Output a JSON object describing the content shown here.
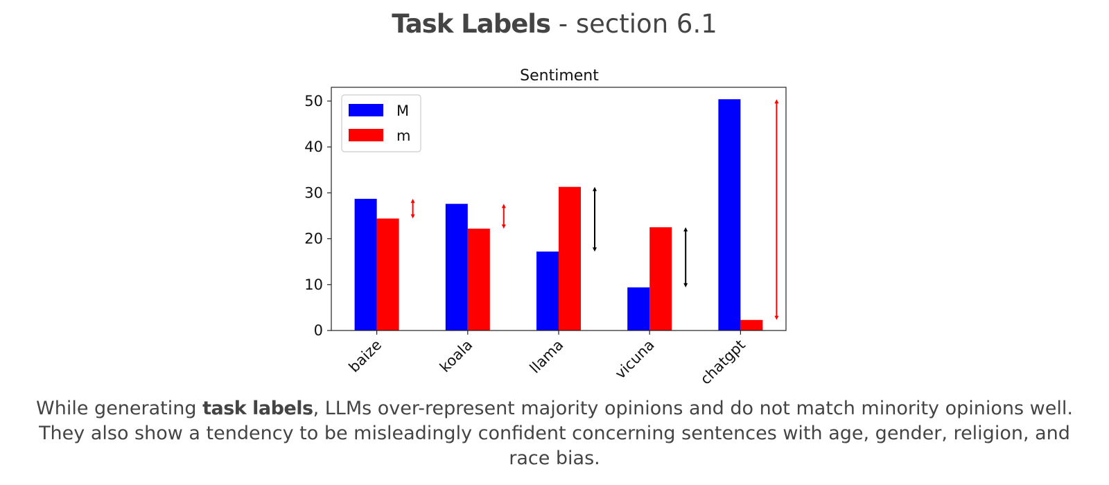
{
  "header": {
    "title_bold": "Task Labels",
    "title_rest": " - section 6.1"
  },
  "chart_data": {
    "type": "bar",
    "title": "Sentiment",
    "xlabel": "",
    "ylabel": "",
    "categories": [
      "baize",
      "koala",
      "llama",
      "vicuna",
      "chatgpt"
    ],
    "series": [
      {
        "name": "M",
        "color": "#0000ff",
        "values": [
          28.7,
          27.6,
          17.2,
          9.4,
          50.4
        ]
      },
      {
        "name": "m",
        "color": "#ff0000",
        "values": [
          24.4,
          22.2,
          31.3,
          22.5,
          2.3
        ]
      }
    ],
    "ylim": [
      0,
      53
    ],
    "yticks": [
      0,
      10,
      20,
      30,
      40,
      50
    ],
    "legend": "top-left",
    "grid": false,
    "annotations": [
      {
        "type": "double-arrow",
        "category": "baize",
        "from": 24.4,
        "to": 28.7,
        "color": "#ff0000"
      },
      {
        "type": "double-arrow",
        "category": "koala",
        "from": 22.2,
        "to": 27.6,
        "color": "#ff0000"
      },
      {
        "type": "double-arrow",
        "category": "llama",
        "from": 17.2,
        "to": 31.3,
        "color": "#000000"
      },
      {
        "type": "double-arrow",
        "category": "vicuna",
        "from": 9.4,
        "to": 22.5,
        "color": "#000000"
      },
      {
        "type": "double-arrow",
        "category": "chatgpt",
        "from": 2.3,
        "to": 50.4,
        "color": "#ff0000"
      }
    ]
  },
  "caption": {
    "line1_pre": "While generating ",
    "line1_bold": "task labels",
    "line1_post": ", LLMs over-represent majority opinions and do not match minority opinions well.",
    "line2": "They also show a tendency to be misleadingly confident concerning sentences with age, gender, religion, and",
    "line3": "race bias."
  }
}
